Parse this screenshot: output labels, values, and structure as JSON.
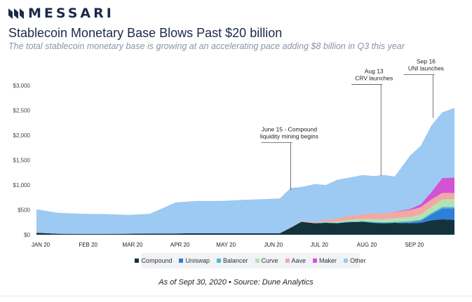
{
  "brand": {
    "name": "MESSARI",
    "logo_icon": "messari-logo-icon",
    "color": "#1b2a4a"
  },
  "header": {
    "title": "Stablecoin Monetary Base Blows Past $20 billion",
    "subtitle": "The total stablecoin monetary base is growing at an accelerating pace adding $8 billion in Q3 this year"
  },
  "footer": {
    "source": "As of Sept 30, 2020 • Source: Dune Analytics"
  },
  "chart_data": {
    "type": "area",
    "stacked": true,
    "x_ticks": [
      "JAN 20",
      "FEB 20",
      "MAR 20",
      "APR 20",
      "MAY 20",
      "JUN 20",
      "JUL 20",
      "AUG 20",
      "SEP 20"
    ],
    "y_ticks": [
      "$0",
      "$500",
      "$1,000",
      "$1,500",
      "$2,000",
      "$2,500",
      "$3,000"
    ],
    "ylim": [
      0,
      3000
    ],
    "grid": false,
    "legend_position": "bottom",
    "x": [
      "2020-01-01",
      "2020-01-15",
      "2020-02-01",
      "2020-02-15",
      "2020-03-01",
      "2020-03-15",
      "2020-04-01",
      "2020-04-15",
      "2020-05-01",
      "2020-05-15",
      "2020-06-01",
      "2020-06-08",
      "2020-06-15",
      "2020-06-22",
      "2020-07-01",
      "2020-07-08",
      "2020-07-15",
      "2020-07-22",
      "2020-08-01",
      "2020-08-08",
      "2020-08-15",
      "2020-08-22",
      "2020-09-01",
      "2020-09-08",
      "2020-09-15",
      "2020-09-22",
      "2020-09-30"
    ],
    "series": [
      {
        "name": "Compound",
        "color": "#14323c",
        "values": [
          40,
          20,
          15,
          15,
          20,
          25,
          25,
          30,
          30,
          30,
          30,
          30,
          140,
          260,
          230,
          240,
          230,
          250,
          260,
          240,
          230,
          240,
          230,
          240,
          290,
          310,
          300
        ]
      },
      {
        "name": "Uniswap",
        "color": "#2f7fd6",
        "values": [
          0,
          0,
          0,
          0,
          0,
          0,
          0,
          0,
          0,
          0,
          0,
          0,
          0,
          0,
          0,
          0,
          0,
          0,
          0,
          0,
          0,
          0,
          20,
          40,
          120,
          220,
          230
        ]
      },
      {
        "name": "Balancer",
        "color": "#4fb6d8",
        "values": [
          0,
          0,
          0,
          0,
          0,
          0,
          0,
          0,
          0,
          0,
          0,
          0,
          0,
          0,
          5,
          10,
          10,
          15,
          15,
          20,
          20,
          20,
          25,
          25,
          30,
          30,
          30
        ]
      },
      {
        "name": "Curve",
        "color": "#b4e3b0",
        "values": [
          0,
          0,
          0,
          0,
          0,
          0,
          0,
          0,
          0,
          0,
          0,
          0,
          0,
          0,
          5,
          10,
          20,
          30,
          40,
          50,
          60,
          70,
          80,
          100,
          120,
          150,
          160
        ]
      },
      {
        "name": "Aave",
        "color": "#f2a8a4",
        "values": [
          0,
          0,
          0,
          0,
          0,
          0,
          0,
          0,
          0,
          0,
          0,
          0,
          5,
          10,
          20,
          40,
          60,
          80,
          100,
          120,
          120,
          130,
          140,
          150,
          150,
          130,
          120
        ]
      },
      {
        "name": "Maker",
        "color": "#d453d4",
        "values": [
          0,
          0,
          0,
          0,
          0,
          0,
          0,
          0,
          0,
          0,
          0,
          0,
          0,
          0,
          0,
          0,
          0,
          0,
          0,
          0,
          0,
          5,
          20,
          60,
          150,
          300,
          310
        ]
      },
      {
        "name": "Other",
        "color": "#9ccaf2",
        "values": [
          470,
          420,
          405,
          400,
          380,
          395,
          625,
          650,
          650,
          670,
          690,
          700,
          795,
          690,
          760,
          700,
          780,
          765,
          785,
          750,
          770,
          705,
          1075,
          1175,
          1340,
          1320,
          1400
        ]
      }
    ],
    "annotations": [
      {
        "date": "2020-06-15",
        "value": 900,
        "lines": [
          "June 15 - Compound",
          "liquidity mining begins"
        ],
        "label_at": 1850
      },
      {
        "date": "2020-08-13",
        "value": 1180,
        "lines": [
          "Aug 13",
          "CRV launches"
        ],
        "label_at": 3020
      },
      {
        "date": "2020-09-16",
        "value": 2350,
        "lines": [
          "Sep 16",
          "UNI launches"
        ],
        "label_at": 3220
      }
    ]
  }
}
